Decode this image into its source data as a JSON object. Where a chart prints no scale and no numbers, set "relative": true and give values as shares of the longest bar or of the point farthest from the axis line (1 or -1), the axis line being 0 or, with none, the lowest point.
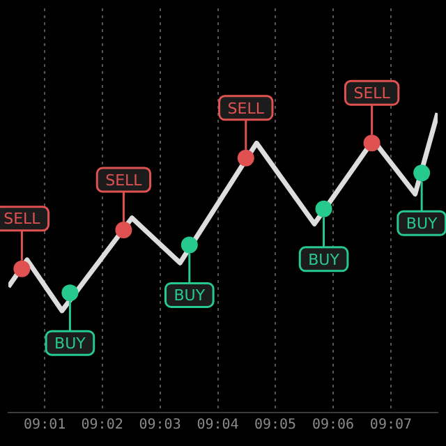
{
  "chart_data": {
    "type": "line",
    "relative": true,
    "grid": "x",
    "legend": false,
    "tick_labels": "x",
    "xlim": [
      9.0062,
      9.1302
    ],
    "xticks": [
      {
        "value": 9.0167,
        "label": "09:01"
      },
      {
        "value": 9.0333,
        "label": "09:02"
      },
      {
        "value": 9.05,
        "label": "09:03"
      },
      {
        "value": 9.0667,
        "label": "09:04"
      },
      {
        "value": 9.0833,
        "label": "09:05"
      },
      {
        "value": 9.1,
        "label": "09:06"
      },
      {
        "value": 9.1167,
        "label": "09:07"
      }
    ],
    "series": [
      {
        "type": "line",
        "color": "#dddddd",
        "marker": "none",
        "x": [
          9.0062,
          9.0116,
          9.0217,
          9.0419,
          9.0558,
          9.0779,
          9.0946,
          9.1116,
          9.1237,
          9.1302
        ],
        "values": [
          0.42,
          0.51,
          0.34,
          0.65,
          0.5,
          0.9,
          0.63,
          0.91,
          0.73,
          1
        ]
      },
      {
        "type": "scatter",
        "color": "#e05252",
        "marker": "circle",
        "x": [
          9.0101,
          9.0395,
          9.0748,
          9.1112
        ],
        "values": [
          0.48,
          0.61,
          0.85,
          0.9
        ]
      },
      {
        "type": "scatter",
        "color": "#26c98e",
        "marker": "circle",
        "x": [
          9.024,
          9.0585,
          9.0973,
          9.1256
        ],
        "values": [
          0.4,
          0.56,
          0.68,
          0.8
        ]
      }
    ],
    "annotations": [
      {
        "text": "SELL",
        "x": 9.0101,
        "y": 0.48
      },
      {
        "text": "SELL",
        "x": 9.0395,
        "y": 0.61
      },
      {
        "text": "SELL",
        "x": 9.0748,
        "y": 0.85
      },
      {
        "text": "SELL",
        "x": 9.1112,
        "y": 0.9
      },
      {
        "text": "BUY",
        "x": 9.024,
        "y": 0.4
      },
      {
        "text": "BUY",
        "x": 9.0585,
        "y": 0.56
      },
      {
        "text": "BUY",
        "x": 9.0973,
        "y": 0.68
      },
      {
        "text": "BUY",
        "x": 9.1256,
        "y": 0.8
      }
    ]
  }
}
